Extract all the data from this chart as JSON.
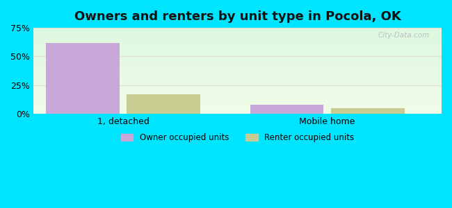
{
  "title": "Owners and renters by unit type in Pocola, OK",
  "categories": [
    "1, detached",
    "Mobile home"
  ],
  "owner_values": [
    62,
    8
  ],
  "renter_values": [
    17,
    5
  ],
  "owner_color": "#c8a8d8",
  "renter_color": "#c8cc90",
  "bar_width": 0.18,
  "group_positions": [
    0.22,
    0.72
  ],
  "ylim": [
    0,
    75
  ],
  "yticks": [
    0,
    25,
    50,
    75
  ],
  "yticklabels": [
    "0%",
    "25%",
    "50%",
    "75%"
  ],
  "outer_color": "#00e5ff",
  "watermark": "City-Data.com",
  "legend_owner": "Owner occupied units",
  "legend_renter": "Renter occupied units",
  "title_fontsize": 13,
  "tick_fontsize": 9,
  "grid_color": "#ddddcc",
  "xlim": [
    0.0,
    1.0
  ]
}
